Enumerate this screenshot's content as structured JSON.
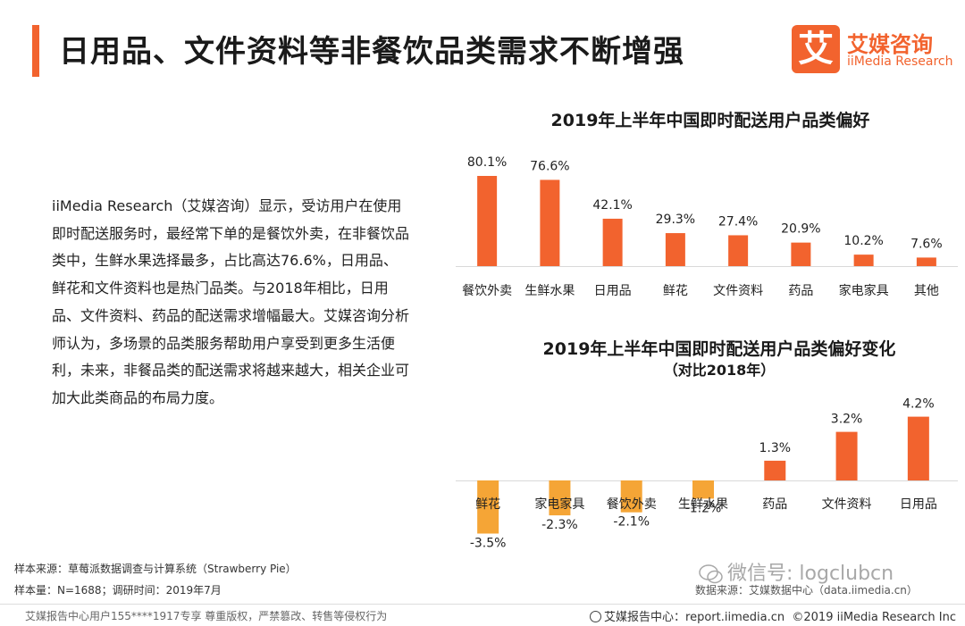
{
  "header": {
    "title": "日用品、文件资料等非餐饮品类需求不断增强",
    "logo_mark": "艾",
    "logo_cn": "艾媒咨询",
    "logo_en": "iiMedia Research",
    "accent_color": "#f2632e"
  },
  "intro_text": "iiMedia Research（艾媒咨询）显示，受访用户在使用即时配送服务时，最经常下单的是餐饮外卖，在非餐饮品类中，生鲜水果选择最多，占比高达76.6%，日用品、鲜花和文件资料也是热门品类。与2018年相比，日用品、文件资料、药品的配送需求增幅最大。艾媒咨询分析师认为，多场景的品类服务帮助用户享受到更多生活便利，未来，非餐品类的配送需求将越来越大，相关企业可加大此类商品的布局力度。",
  "chart_data": [
    {
      "type": "bar",
      "title": "2019年上半年中国即时配送用户品类偏好",
      "categories": [
        "餐饮外卖",
        "生鲜水果",
        "日用品",
        "鲜花",
        "文件资料",
        "药品",
        "家电家具",
        "其他"
      ],
      "values": [
        80.1,
        76.6,
        42.1,
        29.3,
        27.4,
        20.9,
        10.2,
        7.6
      ],
      "labels": [
        "80.1%",
        "76.6%",
        "42.1%",
        "29.3%",
        "27.4%",
        "20.9%",
        "10.2%",
        "7.6%"
      ],
      "unit": "%",
      "bar_color": "#f2632e",
      "ylim": [
        0,
        100
      ],
      "legend": "none",
      "grid": false
    },
    {
      "type": "bar",
      "title": "2019年上半年中国即时配送用户品类偏好变化",
      "subtitle": "（对比2018年）",
      "categories": [
        "鲜花",
        "家电家具",
        "餐饮外卖",
        "生鲜水果",
        "药品",
        "文件资料",
        "日用品"
      ],
      "values": [
        -3.5,
        -2.3,
        -2.1,
        -1.2,
        1.3,
        3.2,
        4.2
      ],
      "labels": [
        "-3.5%",
        "-2.3%",
        "-2.1%",
        "-1.2%",
        "1.3%",
        "3.2%",
        "4.2%"
      ],
      "unit": "%",
      "positive_color": "#f2632e",
      "negative_color": "#f5a536",
      "ylim": [
        -4,
        5
      ],
      "legend": "none",
      "grid": false
    }
  ],
  "footer": {
    "source": "样本来源：草莓派数据调查与计算系统（Strawberry Pie）",
    "sample": "样本量：N=1688；调研时间：2019年7月",
    "data_source": "数据来源：艾媒数据中心（data.iimedia.cn）",
    "watermark": "微信号: logclubcn",
    "copyright_left": "艾媒报告中心用户155****1917专享 尊重版权，严禁篡改、转售等侵权行为",
    "report_center": "艾媒报告中心：report.iimedia.cn",
    "copyright_right": "©2019  iiMedia Research  Inc"
  }
}
